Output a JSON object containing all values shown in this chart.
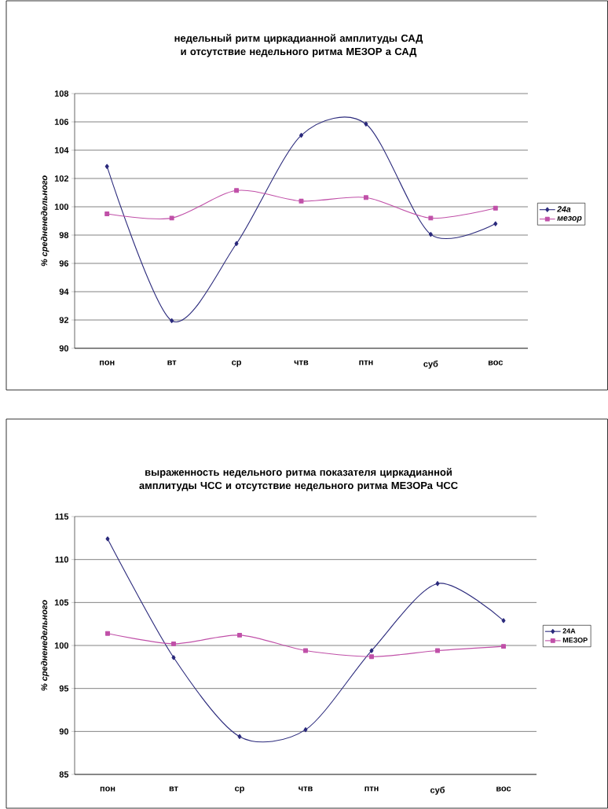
{
  "chart_data": [
    {
      "type": "line",
      "title": "недельный ритм циркадианной амплитуды САД и отсутствие недельного ритма МЕЗОР а САД",
      "ylabel": "% средненедельного",
      "categories": [
        "пон",
        "вт",
        "ср",
        "чтв",
        "птн",
        "суб",
        "вос"
      ],
      "ylim": [
        90,
        108
      ],
      "yticks": [
        90,
        92,
        94,
        96,
        98,
        100,
        102,
        104,
        106,
        108
      ],
      "grid": "y",
      "legend": "right",
      "series": [
        {
          "name": "24а",
          "color": "#2b2a7c",
          "marker": "diamond",
          "values": [
            102.85,
            91.95,
            97.4,
            105.05,
            105.85,
            98.05,
            98.8
          ]
        },
        {
          "name": "мезор",
          "color": "#c050a8",
          "marker": "square",
          "values": [
            99.5,
            99.2,
            101.15,
            100.4,
            100.65,
            99.2,
            99.9
          ]
        }
      ]
    },
    {
      "type": "line",
      "title": "выраженность недельного ритма показателя циркадианной амплитуды ЧСС и отсутствие недельного ритма МЕЗОРа ЧСС",
      "ylabel": "% средненедельного",
      "categories": [
        "пон",
        "вт",
        "ср",
        "чтв",
        "птн",
        "суб",
        "вос"
      ],
      "ylim": [
        85,
        115
      ],
      "yticks": [
        85,
        90,
        95,
        100,
        105,
        110,
        115
      ],
      "grid": "y",
      "legend": "right",
      "series": [
        {
          "name": "24А",
          "color": "#2b2a7c",
          "marker": "diamond",
          "values": [
            112.4,
            98.6,
            89.4,
            90.2,
            99.4,
            107.2,
            102.9
          ]
        },
        {
          "name": "МЕЗОР",
          "color": "#c050a8",
          "marker": "square",
          "values": [
            101.4,
            100.2,
            101.2,
            99.4,
            98.7,
            99.4,
            99.9
          ]
        }
      ]
    }
  ]
}
